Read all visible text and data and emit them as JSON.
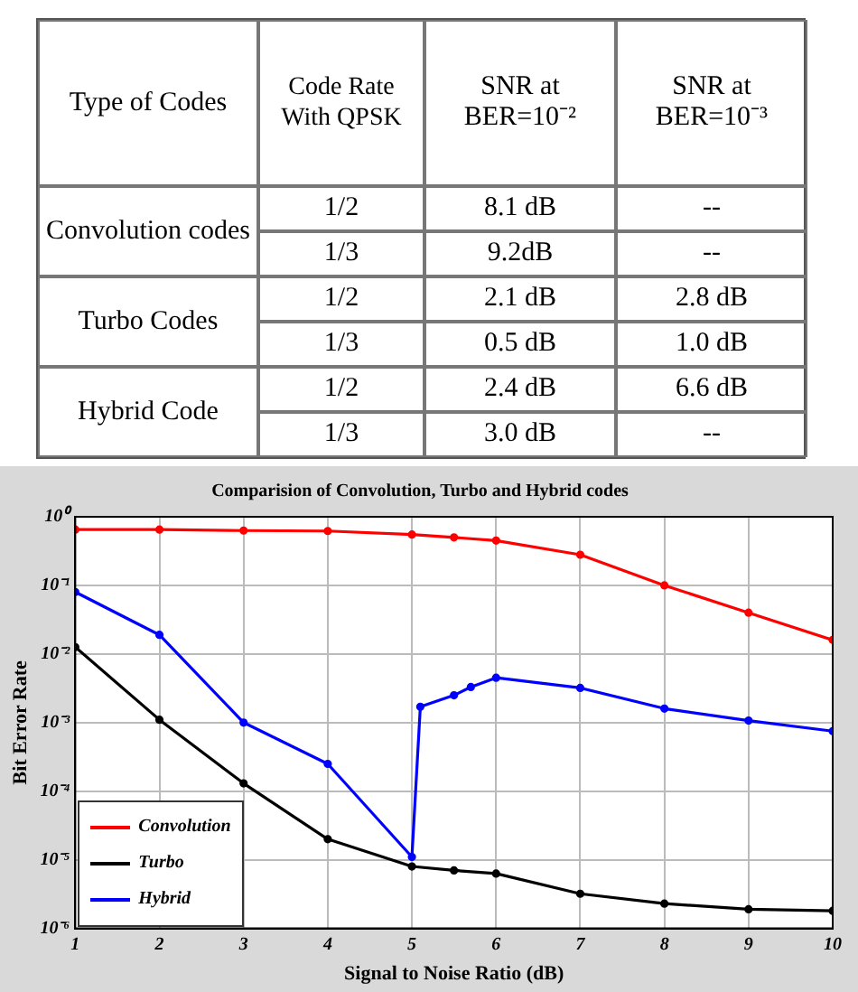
{
  "chart_data": [
    {
      "type": "other",
      "annotations": [
        "Type of Codes",
        "Code Rate With QPSK",
        "SNR at BER=10⁻²",
        "SNR at BER=10⁻³",
        "Convolution codes",
        "1/2",
        "8.1 dB",
        "--",
        "1/3",
        "9.2dB",
        "--",
        "Turbo Codes",
        "1/2",
        "2.1 dB",
        "2.8 dB",
        "1/3",
        "0.5 dB",
        "1.0 dB",
        "Hybrid Code",
        "1/2",
        "2.4 dB",
        "6.6 dB",
        "1/3",
        "3.0 dB",
        "--"
      ]
    },
    {
      "type": "line",
      "title": "Comparision of Convolution, Turbo and Hybrid codes",
      "xlabel": "Signal to Noise Ratio (dB)",
      "ylabel": "Bit Error Rate",
      "log": "y",
      "grid": true,
      "legend": "bottom left",
      "marker": "circle",
      "line_style": "solid",
      "xlim": [
        1,
        10
      ],
      "xticks": [
        1,
        2,
        3,
        4,
        5,
        6,
        7,
        8,
        9,
        10
      ],
      "ylim": [
        1e-06,
        1
      ],
      "yticks": [
        {
          "value": 1e-06,
          "label": "10⁻⁶"
        },
        {
          "value": 1e-05,
          "label": "10⁻⁵"
        },
        {
          "value": 0.0001,
          "label": "10⁻⁴"
        },
        {
          "value": 0.001,
          "label": "10⁻³"
        },
        {
          "value": 0.01,
          "label": "10⁻²"
        },
        {
          "value": 0.1,
          "label": "10⁻¹"
        },
        {
          "value": 1,
          "label": "10⁰"
        }
      ],
      "series": [
        {
          "name": "Convolution",
          "color": "#ff0000",
          "x": [
            1,
            2,
            3,
            4,
            5,
            5.5,
            6,
            7,
            8,
            9,
            10
          ],
          "values": [
            0.65,
            0.65,
            0.63,
            0.62,
            0.55,
            0.5,
            0.45,
            0.28,
            0.1,
            0.04,
            0.016
          ]
        },
        {
          "name": "Turbo",
          "color": "#000000",
          "x": [
            1,
            2,
            3,
            4,
            5,
            5.5,
            6,
            7,
            8,
            9,
            10
          ],
          "values": [
            0.0126,
            0.0011,
            0.00013,
            2e-05,
            8e-06,
            7e-06,
            6.3e-06,
            3.2e-06,
            2.3e-06,
            1.9e-06,
            1.8e-06
          ]
        },
        {
          "name": "Hybrid",
          "color": "#0000ff",
          "x": [
            1,
            2,
            3,
            4,
            5,
            5.1,
            5.5,
            5.7,
            6,
            7,
            8,
            9,
            10
          ],
          "values": [
            0.08,
            0.019,
            0.001,
            0.00025,
            1.1e-05,
            0.0017,
            0.0025,
            0.0033,
            0.0045,
            0.0032,
            0.0016,
            0.00107,
            0.00075
          ]
        }
      ]
    }
  ]
}
